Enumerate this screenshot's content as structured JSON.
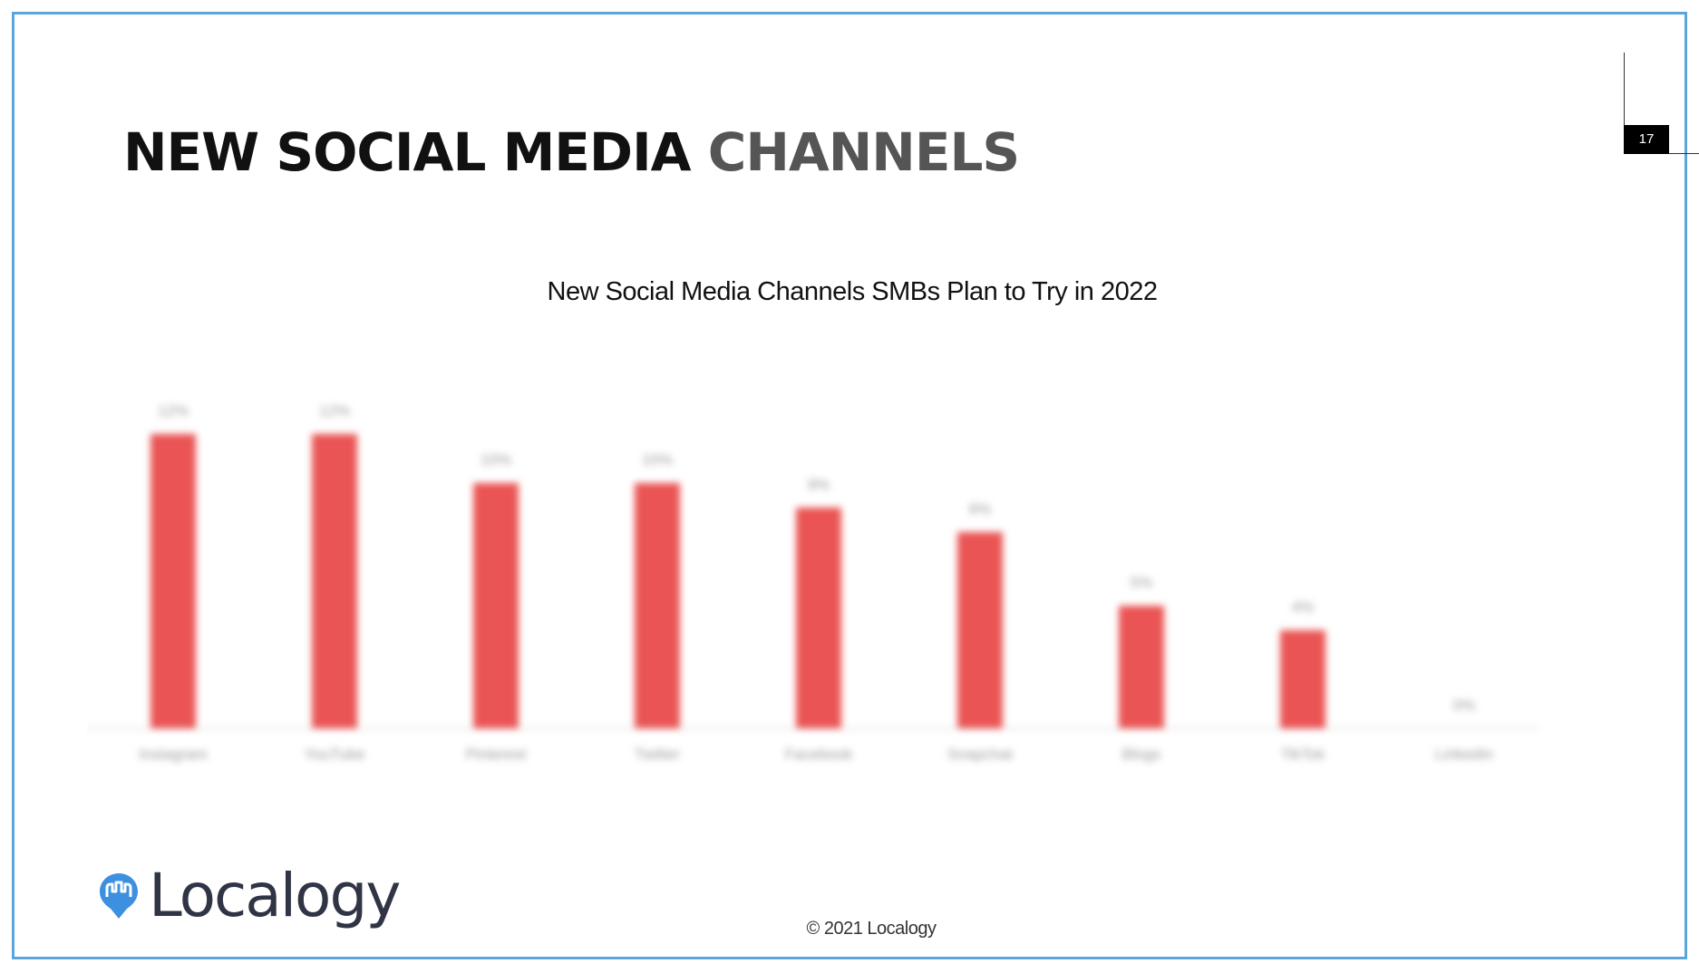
{
  "slide": {
    "title_part1": "NEW SOCIAL MEDIA",
    "title_part2": "CHANNELS",
    "page_number": "17",
    "copyright": "© 2021 Localogy"
  },
  "logo": {
    "text": "Localogy",
    "icon": "location-pin-icon",
    "brand_color": "#3d8fe0"
  },
  "colors": {
    "bar": "#ea5454",
    "frame": "#5aa6dc"
  },
  "chart_data": {
    "type": "bar",
    "title": "New Social Media Channels SMBs Plan to Try in 2022",
    "categories": [
      "Instagram",
      "YouTube",
      "Pinterest",
      "Twitter",
      "Facebook",
      "Snapchat",
      "Blogs",
      "TikTok",
      "LinkedIn"
    ],
    "values": [
      12,
      12,
      10,
      10,
      9,
      8,
      5,
      4,
      0
    ],
    "data_labels": [
      "12%",
      "12%",
      "10%",
      "10%",
      "9%",
      "8%",
      "5%",
      "4%",
      "0%"
    ],
    "ylim": [
      0,
      12
    ],
    "grid": false,
    "legend": "none"
  }
}
